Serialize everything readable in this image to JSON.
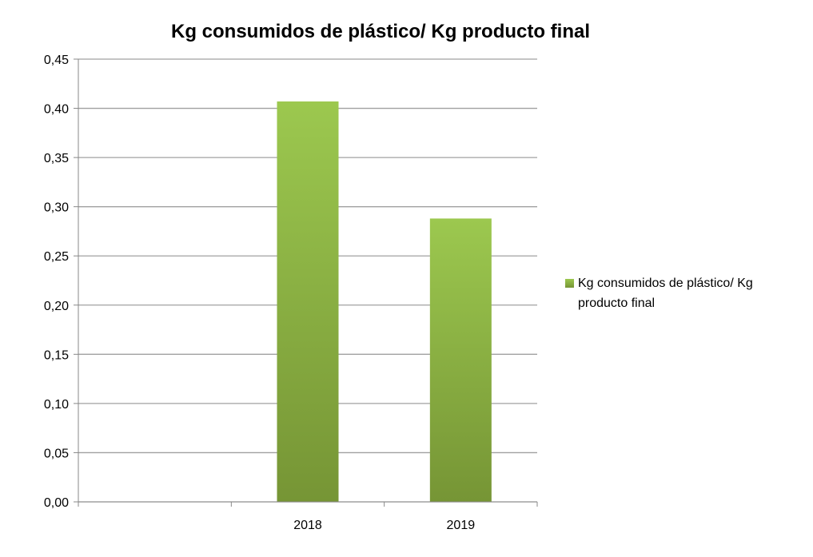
{
  "chart_data": {
    "type": "bar",
    "title": "Kg consumidos de plástico/ Kg producto final",
    "categories": [
      "",
      "2018",
      "2019"
    ],
    "series": [
      {
        "name": "Kg consumidos de plástico/ Kg producto final",
        "values": [
          null,
          0.407,
          0.288
        ]
      }
    ],
    "ylim": [
      0,
      0.45
    ],
    "y_ticks": [
      "0,00",
      "0,05",
      "0,10",
      "0,15",
      "0,20",
      "0,25",
      "0,30",
      "0,35",
      "0,40",
      "0,45"
    ],
    "grid": true,
    "legend": {
      "position": "right",
      "lines": [
        "Kg consumidos de plástico/ Kg",
        "producto final"
      ]
    },
    "colors": {
      "bar_top": "#9cc84f",
      "bar_bottom": "#769535",
      "grid": "#a0a0a0",
      "axis": "#888888"
    }
  }
}
